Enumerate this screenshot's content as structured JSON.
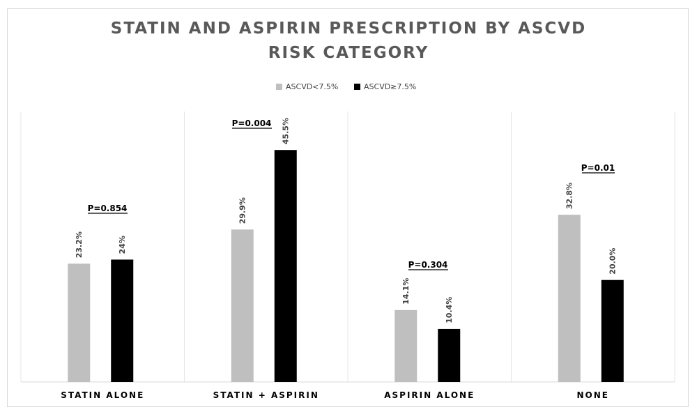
{
  "chart_data": {
    "type": "bar",
    "title": "STATIN AND ASPIRIN PRESCRIPTION BY ASCVD RISK CATEGORY",
    "categories": [
      "STATIN  ALONE",
      "STATIN + ASPIRIN",
      "ASPIRIN ALONE",
      "NONE"
    ],
    "series": [
      {
        "name": "ASCVD<7.5%",
        "values": [
          23.2,
          29.9,
          14.1,
          32.8
        ],
        "labels": [
          "23.2%",
          "29.9%",
          "14.1%",
          "32.8%"
        ],
        "color": "#bfbfbf"
      },
      {
        "name": "ASCVD≥7.5%",
        "values": [
          24,
          45.5,
          10.4,
          20.0
        ],
        "labels": [
          "24%",
          "45.5%",
          "10.4%",
          "20.0%"
        ],
        "color": "#000000"
      }
    ],
    "annotations": [
      "P=0.854",
      "P=0.004",
      "P=0.304",
      "P=0.01"
    ],
    "ylim": [
      0,
      52.5
    ],
    "grid": false,
    "legend": "top-center"
  }
}
